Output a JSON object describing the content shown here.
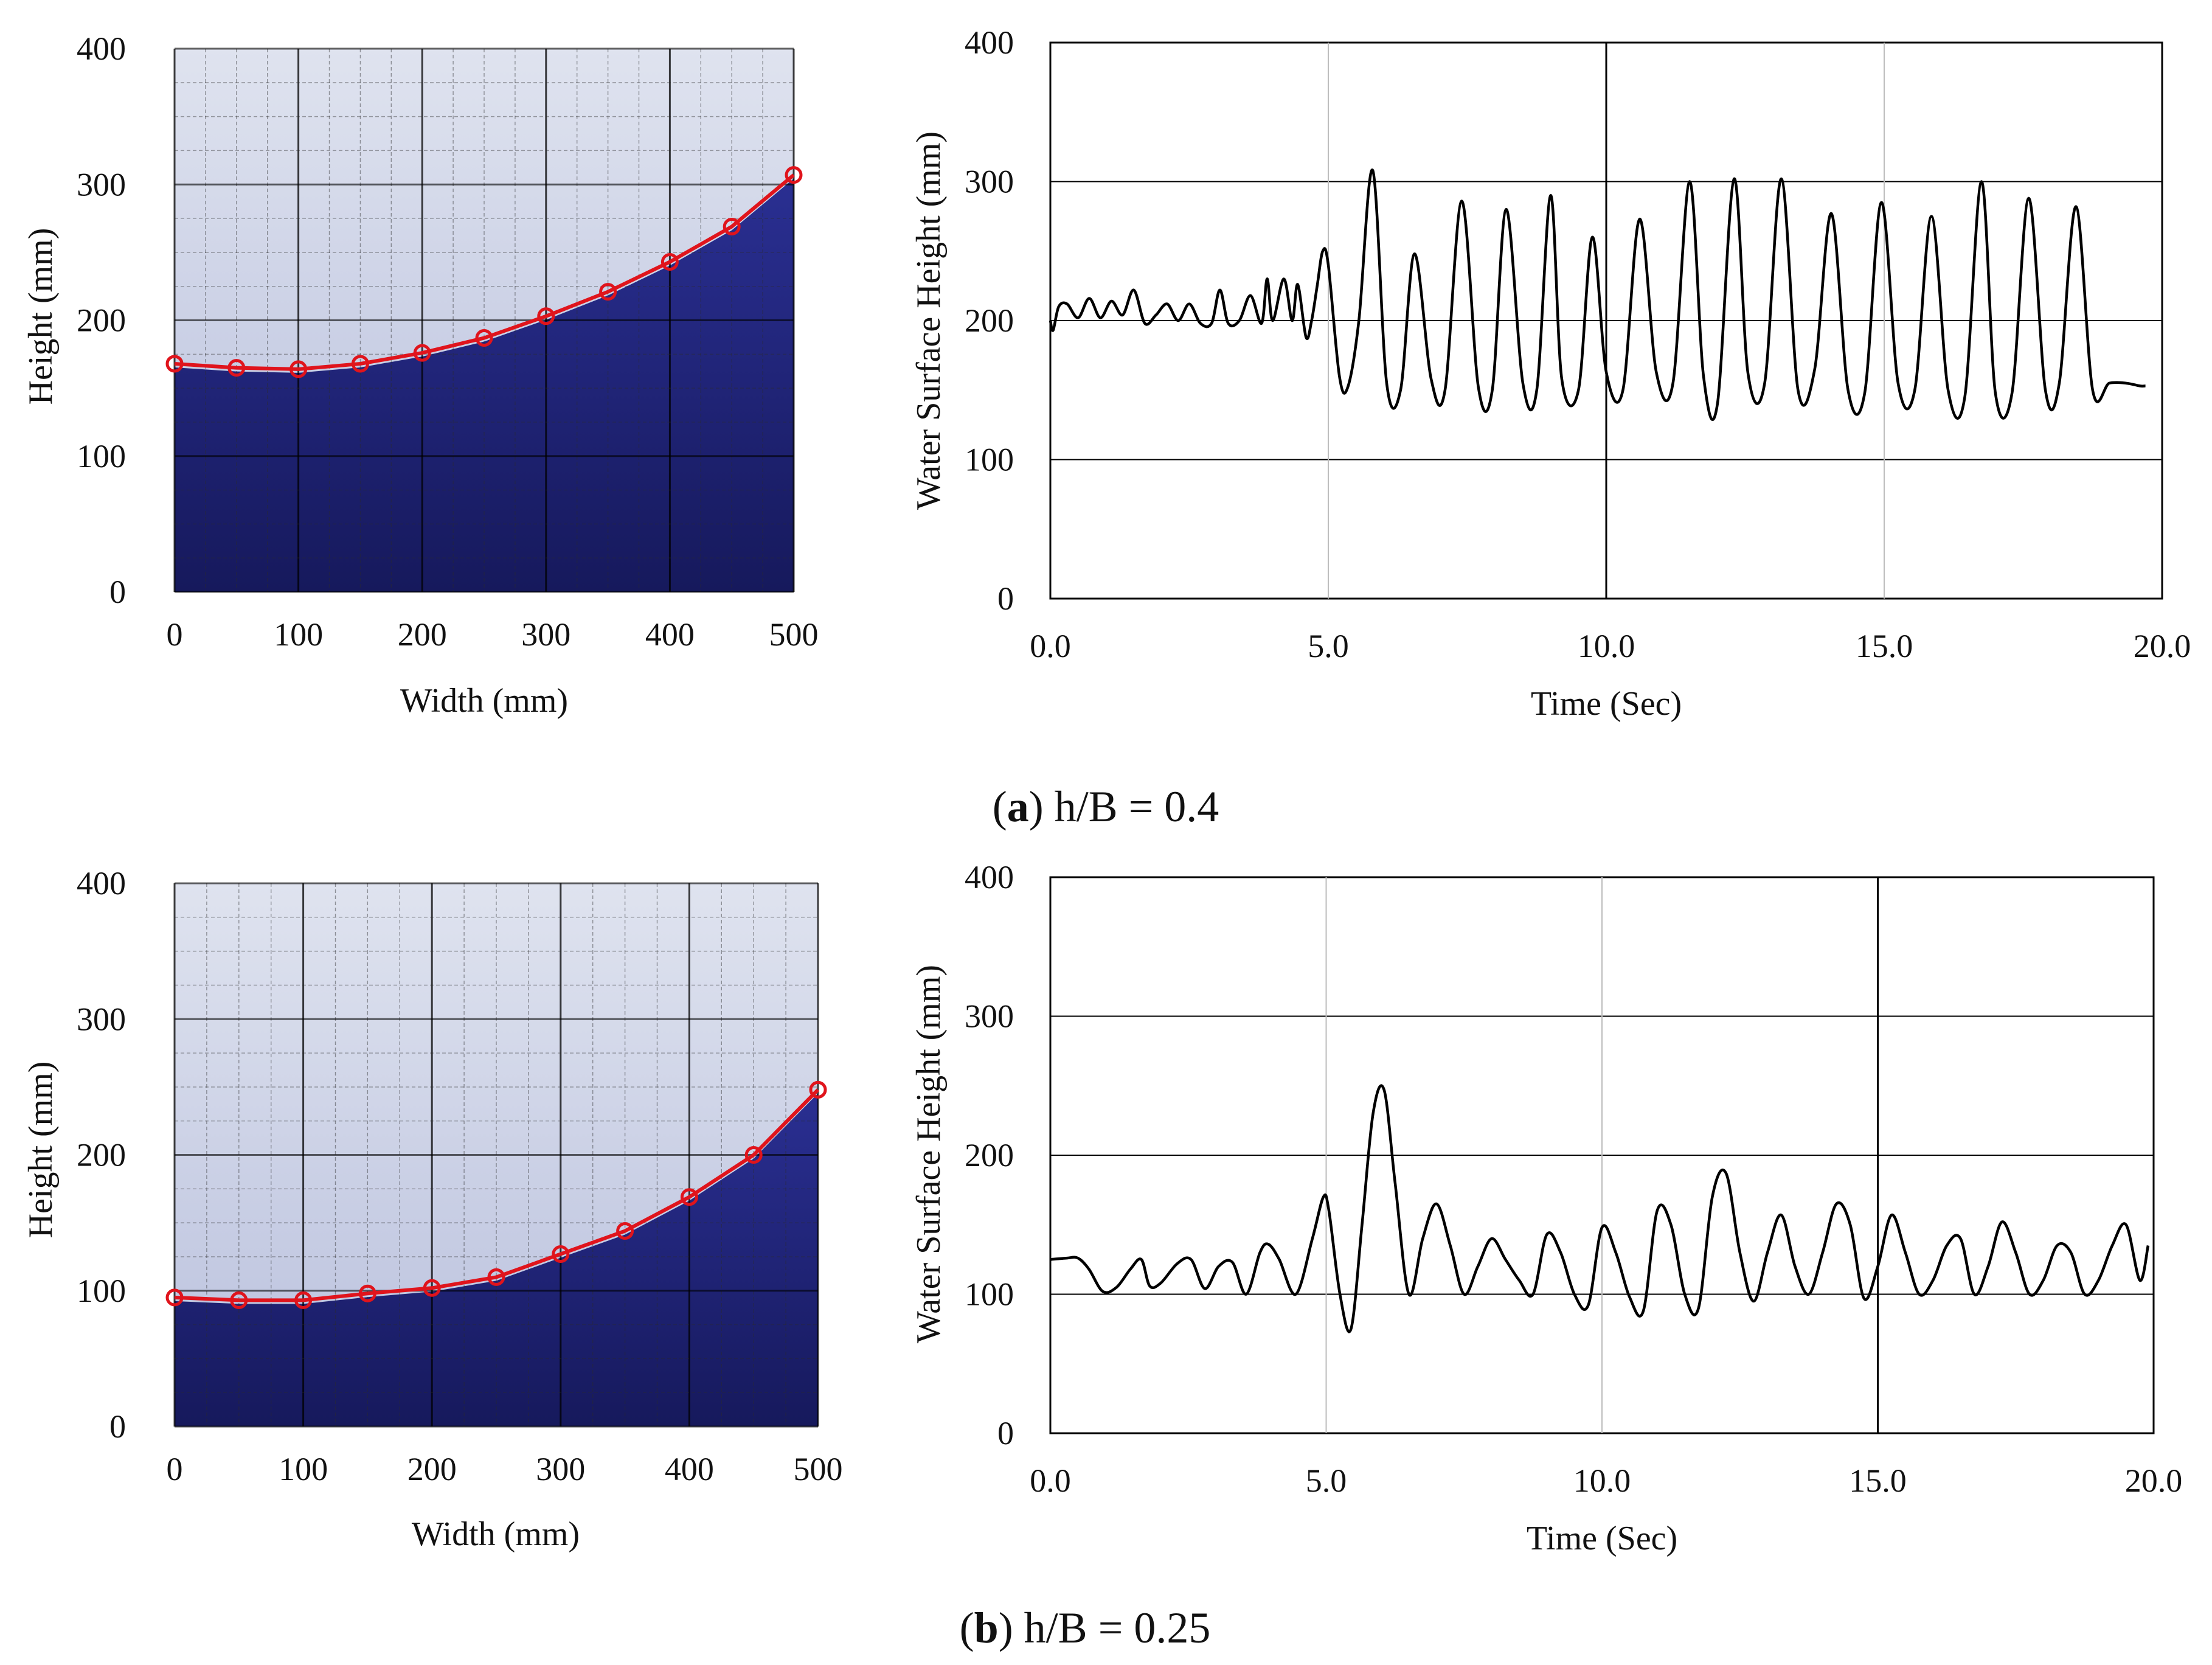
{
  "colors": {
    "water_dark": "#1a1d6e",
    "water_mid": "#2a2f92",
    "air_light": "#d8dced",
    "profile_red": "#e0141c",
    "line_black": "#000000",
    "grid_gray": "#bdbdbd"
  },
  "chart_data": [
    {
      "id": "a_profile",
      "type": "line",
      "subtype": "photo-overlay free-surface profile",
      "xlabel": "Width (mm)",
      "ylabel": "Height (mm)",
      "xlim": [
        0,
        500
      ],
      "ylim": [
        0,
        400
      ],
      "xticks": [
        "0",
        "100",
        "200",
        "300",
        "400",
        "500"
      ],
      "yticks": [
        "0",
        "100",
        "200",
        "300",
        "400"
      ],
      "x": [
        0,
        50,
        100,
        150,
        200,
        250,
        300,
        350,
        400,
        450,
        500
      ],
      "y": [
        168,
        165,
        164,
        168,
        176,
        187,
        203,
        221,
        243,
        269,
        307
      ]
    },
    {
      "id": "a_timeseries",
      "type": "line",
      "xlabel": "Time (Sec)",
      "ylabel": "Water Surface Height (mm)",
      "xlim": [
        0,
        20
      ],
      "ylim": [
        0,
        400
      ],
      "xticks": [
        "0.0",
        "5.0",
        "10.0",
        "15.0",
        "20.0"
      ],
      "yticks": [
        "0",
        "100",
        "200",
        "300",
        "400"
      ],
      "x": [
        0.0,
        0.05,
        0.15,
        0.3,
        0.5,
        0.7,
        0.9,
        1.1,
        1.3,
        1.5,
        1.7,
        1.9,
        2.1,
        2.3,
        2.5,
        2.7,
        2.9,
        3.05,
        3.2,
        3.4,
        3.6,
        3.8,
        3.9,
        4.0,
        4.2,
        4.35,
        4.45,
        4.6,
        4.7,
        4.8,
        4.9,
        5.0,
        5.2,
        5.35,
        5.55,
        5.8,
        6.05,
        6.3,
        6.55,
        6.85,
        7.1,
        7.4,
        7.7,
        7.95,
        8.2,
        8.5,
        8.75,
        9.0,
        9.2,
        9.5,
        9.75,
        10.0,
        10.3,
        10.6,
        10.9,
        11.2,
        11.5,
        11.75,
        12.0,
        12.3,
        12.55,
        12.85,
        13.15,
        13.45,
        13.75,
        14.05,
        14.35,
        14.65,
        14.95,
        15.25,
        15.55,
        15.85,
        16.15,
        16.45,
        16.75,
        17.0,
        17.3,
        17.6,
        17.9,
        18.15,
        18.45,
        18.75,
        19.05,
        19.35,
        19.6,
        19.7
      ],
      "y": [
        200,
        193,
        210,
        212,
        202,
        216,
        202,
        214,
        204,
        222,
        198,
        204,
        212,
        200,
        212,
        198,
        198,
        222,
        198,
        200,
        218,
        198,
        230,
        200,
        230,
        200,
        226,
        188,
        200,
        225,
        250,
        240,
        160,
        152,
        200,
        308,
        155,
        150,
        248,
        158,
        150,
        286,
        152,
        150,
        280,
        155,
        150,
        290,
        158,
        150,
        260,
        163,
        150,
        273,
        163,
        155,
        300,
        160,
        140,
        302,
        162,
        155,
        302,
        150,
        165,
        277,
        150,
        148,
        285,
        155,
        150,
        275,
        150,
        145,
        300,
        148,
        148,
        288,
        150,
        155,
        282,
        150,
        155,
        155,
        153,
        153
      ]
    },
    {
      "id": "b_profile",
      "type": "line",
      "subtype": "photo-overlay free-surface profile",
      "xlabel": "Width (mm)",
      "ylabel": "Height (mm)",
      "xlim": [
        0,
        500
      ],
      "ylim": [
        0,
        400
      ],
      "xticks": [
        "0",
        "100",
        "200",
        "300",
        "400",
        "500"
      ],
      "yticks": [
        "0",
        "100",
        "200",
        "300",
        "400"
      ],
      "x": [
        0,
        50,
        100,
        150,
        200,
        250,
        300,
        350,
        400,
        450,
        500
      ],
      "y": [
        95,
        93,
        93,
        98,
        102,
        110,
        127,
        144,
        169,
        200,
        248
      ]
    },
    {
      "id": "b_timeseries",
      "type": "line",
      "xlabel": "Time (Sec)",
      "ylabel": "Water Surface Height (mm)",
      "xlim": [
        0,
        20
      ],
      "ylim": [
        0,
        400
      ],
      "xticks": [
        "0.0",
        "5.0",
        "10.0",
        "15.0",
        "20.0"
      ],
      "yticks": [
        "0",
        "100",
        "200",
        "300",
        "400"
      ],
      "x": [
        0.0,
        0.3,
        0.5,
        0.7,
        0.95,
        1.2,
        1.45,
        1.65,
        1.8,
        2.0,
        2.3,
        2.55,
        2.8,
        3.05,
        3.3,
        3.55,
        3.8,
        3.95,
        4.15,
        4.45,
        4.75,
        4.95,
        5.05,
        5.25,
        5.45,
        5.65,
        5.85,
        6.05,
        6.25,
        6.5,
        6.75,
        7.0,
        7.25,
        7.5,
        7.75,
        8.0,
        8.25,
        8.5,
        8.75,
        9.0,
        9.25,
        9.5,
        9.75,
        10.0,
        10.25,
        10.5,
        10.75,
        11.0,
        11.25,
        11.5,
        11.75,
        12.0,
        12.25,
        12.5,
        12.75,
        13.0,
        13.25,
        13.5,
        13.75,
        14.0,
        14.25,
        14.5,
        14.75,
        15.0,
        15.25,
        15.5,
        15.75,
        16.0,
        16.25,
        16.5,
        16.75,
        17.0,
        17.25,
        17.5,
        17.75,
        18.0,
        18.25,
        18.5,
        18.75,
        19.0,
        19.25,
        19.5,
        19.75,
        19.9
      ],
      "y": [
        125,
        126,
        126,
        118,
        102,
        105,
        118,
        125,
        106,
        108,
        122,
        125,
        104,
        120,
        123,
        100,
        130,
        136,
        125,
        100,
        140,
        170,
        160,
        100,
        75,
        150,
        230,
        247,
        180,
        100,
        140,
        165,
        135,
        100,
        120,
        140,
        125,
        110,
        100,
        143,
        130,
        100,
        92,
        148,
        130,
        98,
        88,
        160,
        150,
        100,
        90,
        170,
        187,
        130,
        95,
        130,
        157,
        120,
        100,
        130,
        165,
        150,
        97,
        120,
        157,
        130,
        100,
        110,
        135,
        140,
        100,
        120,
        152,
        130,
        100,
        110,
        135,
        130,
        100,
        110,
        135,
        150,
        110,
        135
      ]
    }
  ],
  "captions": [
    {
      "letter": "a",
      "text": ") h/B = 0.4",
      "open": "("
    },
    {
      "letter": "b",
      "text": ") h/B = 0.25",
      "open": "("
    }
  ]
}
